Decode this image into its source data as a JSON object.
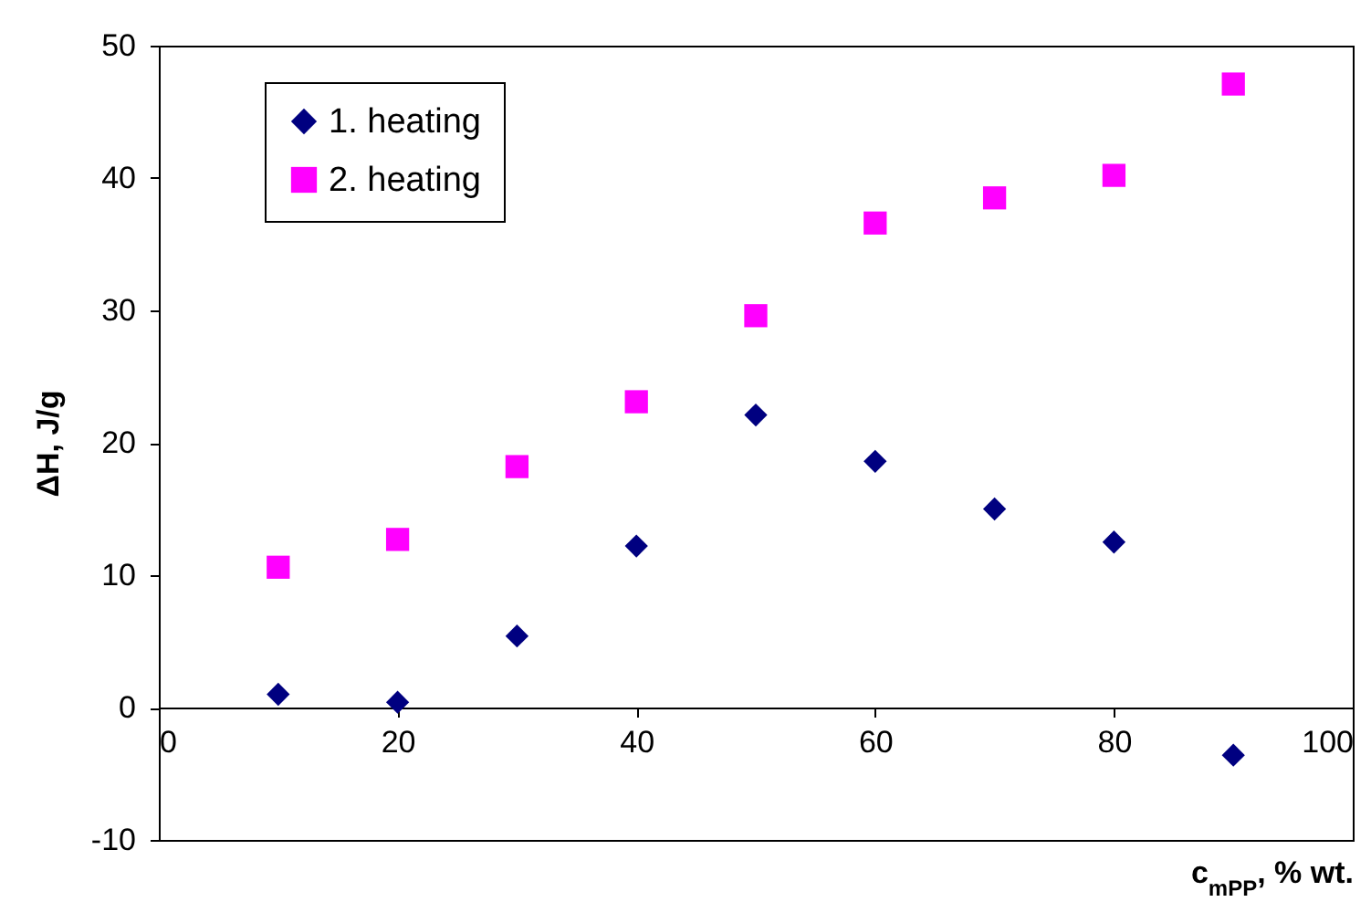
{
  "chart_data": {
    "type": "scatter",
    "xlabel": "c$_{mPP}$, % wt.",
    "ylabel": "ΔH, J/g",
    "x": [
      10,
      20,
      30,
      40,
      50,
      60,
      70,
      80,
      90
    ],
    "series": [
      {
        "name": "1. heating",
        "color": "#000080",
        "marker": "diamond",
        "values": [
          1.0,
          0.4,
          5.4,
          12.2,
          22.1,
          18.6,
          15.0,
          12.5,
          -3.6
        ]
      },
      {
        "name": "2. heating",
        "color": "#ff00ff",
        "marker": "square",
        "values": [
          10.6,
          12.7,
          18.2,
          23.1,
          29.6,
          36.6,
          38.5,
          40.2,
          47.1
        ]
      }
    ],
    "xlim": [
      0,
      100
    ],
    "xticks": [
      0,
      20,
      40,
      60,
      80,
      100
    ],
    "ylim": [
      -10,
      50
    ],
    "yticks": [
      -10,
      0,
      10,
      20,
      30,
      40,
      50
    ],
    "grid": false,
    "legend": "top left"
  }
}
